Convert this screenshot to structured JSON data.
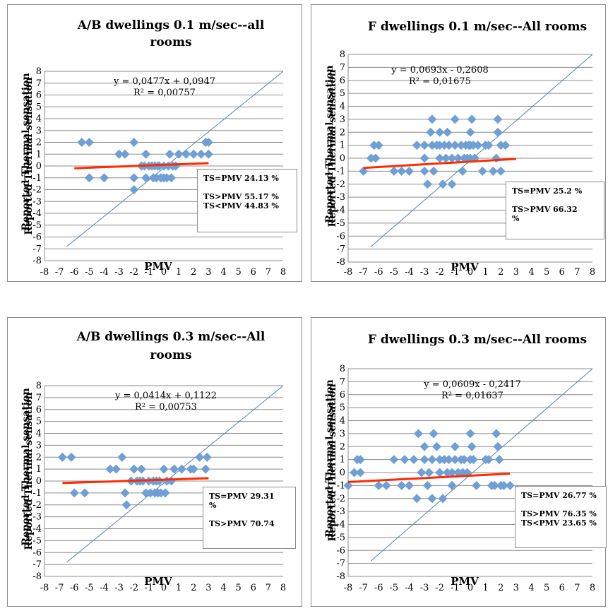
{
  "chart_data": [
    {
      "type": "scatter",
      "title": "A/B dwellings 0.1 m/sec--all rooms",
      "title_lines": [
        "A/B dwellings 0.1 m/sec--all",
        "rooms"
      ],
      "xlabel": "PMV",
      "ylabel": "Reported Thermal sensation",
      "ylabel_overlay": "Reported Thermal sensation",
      "xlim": [
        -8,
        8
      ],
      "ylim": [
        -8,
        8
      ],
      "grid": "horizontal",
      "x_ticks": [
        "-8",
        "-7",
        "-6",
        "-5",
        "-4",
        "-3",
        "-2",
        "-1",
        "0",
        "1",
        "2",
        "3",
        "4",
        "5",
        "6",
        "7",
        "8"
      ],
      "y_ticks": [
        "8",
        "7",
        "6",
        "5",
        "4",
        "3",
        "2",
        "1",
        "0",
        "-1",
        "-2",
        "-3",
        "-4",
        "-5",
        "-6",
        "-7",
        "-8"
      ],
      "trendline": {
        "equation": "y = 0,0477x + 0,0947",
        "r2": "R² = 0,00757",
        "slope": 0.0477,
        "intercept": 0.0947,
        "x_range": [
          -6,
          3
        ],
        "color": "#ff2a00"
      },
      "reference_line": {
        "label": "",
        "x_range": [
          -6.5,
          8
        ],
        "color": "#4f81bd"
      },
      "points": [
        [
          -5.5,
          2
        ],
        [
          -5,
          2
        ],
        [
          -5,
          -1
        ],
        [
          -4,
          -1
        ],
        [
          -3,
          1
        ],
        [
          -2.6,
          1
        ],
        [
          -2,
          2
        ],
        [
          -2,
          -1
        ],
        [
          -2,
          -2
        ],
        [
          -1.5,
          0
        ],
        [
          -1.3,
          0
        ],
        [
          -1.2,
          1
        ],
        [
          -1.2,
          -1
        ],
        [
          -1,
          0
        ],
        [
          -0.8,
          0
        ],
        [
          -0.7,
          -1
        ],
        [
          -0.6,
          0
        ],
        [
          -0.5,
          -1
        ],
        [
          -0.4,
          0
        ],
        [
          -0.3,
          0
        ],
        [
          -0.2,
          -1
        ],
        [
          0,
          -1
        ],
        [
          0,
          0
        ],
        [
          0.2,
          -1
        ],
        [
          0.3,
          0
        ],
        [
          0.4,
          1
        ],
        [
          0.5,
          -1
        ],
        [
          0.6,
          0
        ],
        [
          0.8,
          0
        ],
        [
          1,
          1
        ],
        [
          1.5,
          1
        ],
        [
          2,
          1
        ],
        [
          2.5,
          1
        ],
        [
          2.8,
          2
        ],
        [
          3,
          1
        ],
        [
          3,
          2
        ]
      ],
      "marker_color": "#6f9fd4",
      "legend_box": [
        "TS=PMV  24.13 %",
        "",
        "TS>PMV 55.17 %",
        "TS<PMV 44.83 %"
      ]
    },
    {
      "type": "scatter",
      "title": "F dwellings 0.1 m/sec--All rooms",
      "title_lines": [
        "F dwellings 0.1 m/sec--All rooms"
      ],
      "xlabel": "PMV",
      "ylabel": "Reported Thermal sensation",
      "ylabel_overlay": "Reported Thermal sensation",
      "xlim": [
        -8,
        8
      ],
      "ylim": [
        -8,
        8
      ],
      "grid": "horizontal",
      "x_ticks": [
        "-8",
        "-7",
        "-6",
        "-5",
        "-4",
        "-3",
        "-2",
        "-1",
        "0",
        "1",
        "2",
        "3",
        "4",
        "5",
        "6",
        "7",
        "8"
      ],
      "y_ticks": [
        "8",
        "7",
        "6",
        "5",
        "4",
        "3",
        "2",
        "1",
        "0",
        "-1",
        "-2",
        "-3",
        "-4",
        "-5",
        "-6",
        "-7",
        "-8"
      ],
      "trendline": {
        "equation": "y = 0,0693x - 0,2608",
        "r2": "R² = 0,01675",
        "slope": 0.0693,
        "intercept": -0.2608,
        "x_range": [
          -7,
          3
        ],
        "color": "#ff2a00"
      },
      "reference_line": {
        "label": "",
        "x_range": [
          -6.5,
          8
        ],
        "color": "#4f81bd"
      },
      "points": [
        [
          -7,
          -1
        ],
        [
          -6.5,
          0
        ],
        [
          -6.3,
          1
        ],
        [
          -6.2,
          0
        ],
        [
          -6,
          1
        ],
        [
          -5,
          -1
        ],
        [
          -4.5,
          -1
        ],
        [
          -4,
          -1
        ],
        [
          -3.5,
          1
        ],
        [
          -3,
          -1
        ],
        [
          -3,
          0
        ],
        [
          -3,
          1
        ],
        [
          -2.8,
          -2
        ],
        [
          -2.6,
          2
        ],
        [
          -2.5,
          1
        ],
        [
          -2.5,
          3
        ],
        [
          -2.4,
          -1
        ],
        [
          -2.2,
          1
        ],
        [
          -2,
          0
        ],
        [
          -2,
          1
        ],
        [
          -2,
          2
        ],
        [
          -1.8,
          -2
        ],
        [
          -1.7,
          1
        ],
        [
          -1.6,
          0
        ],
        [
          -1.5,
          2
        ],
        [
          -1.4,
          1
        ],
        [
          -1.2,
          -2
        ],
        [
          -1.2,
          0
        ],
        [
          -1,
          1
        ],
        [
          -1,
          3
        ],
        [
          -0.8,
          0
        ],
        [
          -0.6,
          1
        ],
        [
          -0.5,
          -1
        ],
        [
          -0.4,
          0
        ],
        [
          -0.3,
          1
        ],
        [
          -0.2,
          0
        ],
        [
          -0.1,
          1
        ],
        [
          0,
          0
        ],
        [
          0,
          1
        ],
        [
          0,
          2
        ],
        [
          0.1,
          3
        ],
        [
          0.2,
          1
        ],
        [
          0.3,
          0
        ],
        [
          0.5,
          1
        ],
        [
          0.8,
          -1
        ],
        [
          1,
          1
        ],
        [
          1.2,
          1
        ],
        [
          1.5,
          -1
        ],
        [
          1.7,
          0
        ],
        [
          1.8,
          2
        ],
        [
          1.8,
          3
        ],
        [
          2,
          -1
        ],
        [
          2,
          1
        ],
        [
          2.3,
          1
        ]
      ],
      "marker_color": "#6f9fd4",
      "legend_box": [
        "TS=PMV  25.2 %",
        "",
        "TS>PMV 66.32",
        "%"
      ]
    },
    {
      "type": "scatter",
      "title": "A/B dwellings 0.3 m/sec--All rooms",
      "title_lines": [
        "A/B dwellings 0.3 m/sec--All",
        "rooms"
      ],
      "xlabel": "PMV",
      "ylabel": "Reported Thermal sensation",
      "ylabel_overlay": "Reported Thermal sensation",
      "xlim": [
        -8,
        8
      ],
      "ylim": [
        -8,
        8
      ],
      "grid": "horizontal",
      "x_ticks": [
        "-8",
        "-7",
        "-6",
        "-5",
        "-4",
        "-3",
        "-2",
        "-1",
        "0",
        "1",
        "2",
        "3",
        "4",
        "5",
        "6",
        "7",
        "8"
      ],
      "y_ticks": [
        "8",
        "7",
        "6",
        "5",
        "4",
        "3",
        "2",
        "1",
        "0",
        "-1",
        "-2",
        "-3",
        "-4",
        "-5",
        "-6",
        "-7",
        "-8"
      ],
      "trendline": {
        "equation": "y = 0,0414x + 0,1122",
        "r2": "R² = 0,00753",
        "slope": 0.0414,
        "intercept": 0.1122,
        "x_range": [
          -6.8,
          3
        ],
        "color": "#ff2a00"
      },
      "reference_line": {
        "label": "",
        "x_range": [
          -6.5,
          8
        ],
        "color": "#4f81bd"
      },
      "points": [
        [
          -6.8,
          2
        ],
        [
          -6.2,
          2
        ],
        [
          -6,
          -1
        ],
        [
          -5.3,
          -1
        ],
        [
          -3.6,
          1
        ],
        [
          -3.2,
          1
        ],
        [
          -2.8,
          2
        ],
        [
          -2.6,
          -1
        ],
        [
          -2.5,
          -2
        ],
        [
          -2.2,
          0
        ],
        [
          -2,
          1
        ],
        [
          -1.8,
          0
        ],
        [
          -1.6,
          0
        ],
        [
          -1.5,
          1
        ],
        [
          -1.4,
          0
        ],
        [
          -1.2,
          -1
        ],
        [
          -1,
          0
        ],
        [
          -0.9,
          -1
        ],
        [
          -0.7,
          0
        ],
        [
          -0.6,
          -1
        ],
        [
          -0.5,
          0
        ],
        [
          -0.4,
          -1
        ],
        [
          -0.3,
          0
        ],
        [
          -0.2,
          -1
        ],
        [
          0,
          1
        ],
        [
          0.1,
          -1
        ],
        [
          0.2,
          0
        ],
        [
          0.5,
          0
        ],
        [
          0.7,
          1
        ],
        [
          1.2,
          1
        ],
        [
          1.8,
          1
        ],
        [
          2,
          1
        ],
        [
          2.4,
          2
        ],
        [
          2.8,
          1
        ],
        [
          2.9,
          2
        ]
      ],
      "marker_color": "#6f9fd4",
      "legend_box": [
        "TS=PMV  29.31",
        "%",
        "",
        "TS>PMV 70.74"
      ]
    },
    {
      "type": "scatter",
      "title": "F dwellings 0.3 m/sec--All rooms",
      "title_lines": [
        "F dwellings 0.3 m/sec--All rooms"
      ],
      "xlabel": "PMV",
      "ylabel": "Reported Thermal sensation",
      "ylabel_overlay": "Reported Thermal sensation",
      "xlim": [
        -8,
        8
      ],
      "ylim": [
        -8,
        8
      ],
      "grid": "horizontal",
      "x_ticks": [
        "-8",
        "-7",
        "-6",
        "-5",
        "-4",
        "-3",
        "-2",
        "-1",
        "0",
        "1",
        "2",
        "3",
        "4",
        "5",
        "6",
        "7",
        "8"
      ],
      "y_ticks": [
        "8",
        "7",
        "6",
        "5",
        "4",
        "3",
        "2",
        "1",
        "0",
        "-1",
        "-2",
        "-3",
        "-4",
        "-5",
        "-6",
        "-7",
        "-8"
      ],
      "trendline": {
        "equation": "y = 0,0609x - 0,2417",
        "r2": "R² = 0,01637",
        "slope": 0.0609,
        "intercept": -0.2417,
        "x_range": [
          -8,
          2.6
        ],
        "color": "#ff2a00"
      },
      "reference_line": {
        "label": "",
        "x_range": [
          -6.5,
          8
        ],
        "color": "#4f81bd"
      },
      "points": [
        [
          -8,
          -1
        ],
        [
          -7.6,
          0
        ],
        [
          -7.4,
          1
        ],
        [
          -7.2,
          0
        ],
        [
          -7.2,
          1
        ],
        [
          -6,
          -1
        ],
        [
          -5.5,
          -1
        ],
        [
          -5,
          1
        ],
        [
          -4.5,
          -1
        ],
        [
          -4.3,
          1
        ],
        [
          -4,
          -1
        ],
        [
          -3.7,
          1
        ],
        [
          -3.5,
          -2
        ],
        [
          -3.4,
          3
        ],
        [
          -3.2,
          0
        ],
        [
          -3,
          1
        ],
        [
          -3,
          2
        ],
        [
          -2.8,
          -1
        ],
        [
          -2.7,
          0
        ],
        [
          -2.5,
          -2
        ],
        [
          -2.5,
          1
        ],
        [
          -2.4,
          3
        ],
        [
          -2.2,
          2
        ],
        [
          -2,
          0
        ],
        [
          -2,
          1
        ],
        [
          -1.8,
          -2
        ],
        [
          -1.7,
          1
        ],
        [
          -1.5,
          0
        ],
        [
          -1.4,
          1
        ],
        [
          -1.2,
          -1
        ],
        [
          -1.2,
          0
        ],
        [
          -1,
          1
        ],
        [
          -1,
          2
        ],
        [
          -0.8,
          0
        ],
        [
          -0.6,
          1
        ],
        [
          -0.5,
          0
        ],
        [
          -0.4,
          1
        ],
        [
          -0.2,
          0
        ],
        [
          0,
          1
        ],
        [
          0,
          3
        ],
        [
          0.1,
          2
        ],
        [
          0.2,
          1
        ],
        [
          0.4,
          -1
        ],
        [
          1,
          1
        ],
        [
          1.2,
          1
        ],
        [
          1.4,
          -1
        ],
        [
          1.6,
          -1
        ],
        [
          1.7,
          3
        ],
        [
          1.8,
          2
        ],
        [
          1.9,
          1
        ],
        [
          2,
          -1
        ],
        [
          2.2,
          -1
        ],
        [
          2.6,
          -1
        ]
      ],
      "marker_color": "#6f9fd4",
      "legend_box": [
        "TS=PMV  26.77 %",
        "",
        "TS>PMV 76.35  %",
        "TS<PMV 23.65  %"
      ]
    }
  ]
}
